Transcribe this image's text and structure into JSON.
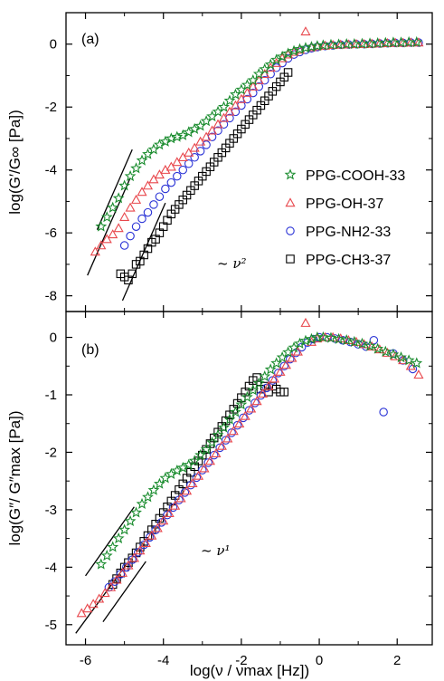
{
  "chart_data": [
    {
      "panel": "(a)",
      "type": "scatter",
      "ylabel": "log(G′/G∞ [Pa])",
      "xlim": [
        -6.5,
        2.9
      ],
      "ylim": [
        -8.5,
        1.0
      ],
      "yticks": [
        0,
        -2,
        -4,
        -6,
        -8
      ],
      "grid": false,
      "legend_position": "right-center",
      "annotations": [
        {
          "text": "~ ν²",
          "x": -4.05,
          "y": -6.8
        },
        {
          "slope_lines": [
            [
              -5.7,
              -5.9,
              -4.8,
              -3.35
            ],
            [
              -5.95,
              -7.35,
              -4.85,
              -4.25
            ],
            [
              -5.05,
              -8.15,
              -3.95,
              -5.05
            ]
          ]
        }
      ],
      "series": [
        {
          "name": "PPG-COOH-33",
          "color": "#1a8c2e",
          "marker": "star",
          "x": [
            -5.6,
            -5.45,
            -5.3,
            -5.15,
            -5.0,
            -4.85,
            -4.7,
            -4.55,
            -4.4,
            -4.25,
            -4.1,
            -3.95,
            -3.8,
            -3.65,
            -3.5,
            -3.35,
            -3.2,
            -3.05,
            -2.9,
            -2.75,
            -2.6,
            -2.45,
            -2.3,
            -2.15,
            -2.0,
            -1.85,
            -1.7,
            -1.55,
            -1.4,
            -1.25,
            -1.1,
            -0.95,
            -0.8,
            -0.65,
            -0.5,
            -0.35,
            -0.2,
            -0.05,
            0.1,
            0.3,
            0.5,
            0.7,
            0.9,
            1.1,
            1.3,
            1.5,
            1.7,
            1.9,
            2.1,
            2.3,
            2.5
          ],
          "y": [
            -5.8,
            -5.5,
            -5.2,
            -4.9,
            -4.5,
            -4.2,
            -3.95,
            -3.7,
            -3.5,
            -3.35,
            -3.2,
            -3.1,
            -3.0,
            -2.95,
            -2.9,
            -2.8,
            -2.7,
            -2.6,
            -2.45,
            -2.3,
            -2.15,
            -2.0,
            -1.8,
            -1.6,
            -1.45,
            -1.3,
            -1.15,
            -0.95,
            -0.8,
            -0.65,
            -0.5,
            -0.4,
            -0.3,
            -0.22,
            -0.16,
            -0.12,
            -0.09,
            -0.06,
            -0.04,
            -0.02,
            -0.01,
            0.0,
            0.0,
            0.01,
            0.02,
            0.03,
            0.04,
            0.05,
            0.05,
            0.06,
            0.06
          ]
        },
        {
          "name": "PPG-OH-37",
          "color": "#e8474c",
          "marker": "triangle",
          "x": [
            -5.75,
            -5.6,
            -5.45,
            -5.3,
            -5.15,
            -5.0,
            -4.85,
            -4.7,
            -4.55,
            -4.4,
            -4.25,
            -4.1,
            -3.95,
            -3.8,
            -3.65,
            -3.5,
            -3.35,
            -3.2,
            -3.05,
            -2.9,
            -2.75,
            -2.6,
            -2.45,
            -2.3,
            -2.15,
            -2.0,
            -1.85,
            -1.7,
            -1.55,
            -1.4,
            -1.25,
            -1.1,
            -0.95,
            -0.8,
            -0.65,
            -0.5,
            -0.35,
            -0.2,
            -0.05,
            0.15,
            0.35,
            0.55,
            0.75,
            0.95,
            1.15,
            1.35,
            1.55,
            1.75,
            1.95,
            2.15,
            2.35,
            2.55
          ],
          "y": [
            -6.6,
            -6.4,
            -6.2,
            -6.05,
            -5.85,
            -5.5,
            -5.2,
            -4.95,
            -4.7,
            -4.5,
            -4.3,
            -4.15,
            -4.0,
            -3.9,
            -3.75,
            -3.6,
            -3.45,
            -3.3,
            -3.1,
            -2.95,
            -2.75,
            -2.55,
            -2.35,
            -2.15,
            -1.95,
            -1.75,
            -1.55,
            -1.35,
            -1.15,
            -0.95,
            -0.75,
            -0.6,
            -0.45,
            -0.33,
            -0.25,
            -0.18,
            0.4,
            -0.1,
            -0.07,
            -0.05,
            -0.03,
            -0.02,
            -0.01,
            0.0,
            0.0,
            0.01,
            0.02,
            0.03,
            0.04,
            0.04,
            0.05,
            0.05
          ]
        },
        {
          "name": "PPG-NH2-33",
          "color": "#2a33d6",
          "marker": "circle",
          "x": [
            -5.0,
            -4.85,
            -4.7,
            -4.55,
            -4.4,
            -4.25,
            -4.1,
            -3.95,
            -3.8,
            -3.65,
            -3.5,
            -3.35,
            -3.2,
            -3.05,
            -2.9,
            -2.75,
            -2.6,
            -2.45,
            -2.3,
            -2.15,
            -2.0,
            -1.85,
            -1.7,
            -1.55,
            -1.4,
            -1.25,
            -1.1,
            -0.95,
            -0.8,
            -0.65,
            -0.5,
            -0.35,
            -0.2,
            -0.05,
            0.15,
            0.35,
            0.55,
            0.75,
            0.95,
            1.15,
            1.35,
            1.55,
            1.75,
            1.95,
            2.15,
            2.35,
            2.55
          ],
          "y": [
            -6.4,
            -6.1,
            -5.8,
            -5.55,
            -5.35,
            -5.1,
            -4.85,
            -4.6,
            -4.4,
            -4.2,
            -4.0,
            -3.8,
            -3.6,
            -3.4,
            -3.2,
            -2.95,
            -2.75,
            -2.55,
            -2.35,
            -2.15,
            -1.95,
            -1.75,
            -1.55,
            -1.35,
            -1.15,
            -0.95,
            -0.75,
            -0.6,
            -0.45,
            -0.33,
            -0.25,
            -0.18,
            -0.13,
            -0.09,
            -0.06,
            -0.04,
            -0.02,
            -0.01,
            0.0,
            0.0,
            0.01,
            0.02,
            0.03,
            0.04,
            0.04,
            0.05,
            0.05
          ]
        },
        {
          "name": "PPG-CH3-37",
          "color": "#000000",
          "marker": "square",
          "x": [
            -5.1,
            -5.0,
            -4.9,
            -4.8,
            -4.7,
            -4.6,
            -4.5,
            -4.4,
            -4.3,
            -4.2,
            -4.1,
            -4.0,
            -3.9,
            -3.8,
            -3.7,
            -3.6,
            -3.5,
            -3.4,
            -3.3,
            -3.2,
            -3.1,
            -3.0,
            -2.9,
            -2.8,
            -2.7,
            -2.6,
            -2.5,
            -2.4,
            -2.3,
            -2.2,
            -2.1,
            -2.0,
            -1.9,
            -1.8,
            -1.7,
            -1.6,
            -1.5,
            -1.4,
            -1.3,
            -1.2,
            -1.1,
            -1.0,
            -0.9,
            -0.8
          ],
          "y": [
            -7.3,
            -7.4,
            -7.5,
            -7.3,
            -7.0,
            -6.9,
            -6.7,
            -6.5,
            -6.3,
            -6.2,
            -6.0,
            -5.8,
            -5.6,
            -5.4,
            -5.25,
            -5.1,
            -4.95,
            -4.8,
            -4.65,
            -4.5,
            -4.35,
            -4.2,
            -4.05,
            -3.9,
            -3.75,
            -3.6,
            -3.45,
            -3.3,
            -3.15,
            -3.0,
            -2.85,
            -2.7,
            -2.55,
            -2.4,
            -2.25,
            -2.1,
            -1.95,
            -1.8,
            -1.65,
            -1.5,
            -1.35,
            -1.2,
            -1.05,
            -0.9
          ]
        }
      ]
    },
    {
      "panel": "(b)",
      "type": "scatter",
      "ylabel": "log(G″/ G″max [Pa])",
      "xlabel": "log(ν / νmax [Hz])",
      "xlim": [
        -6.5,
        2.9
      ],
      "ylim": [
        -5.35,
        0.45
      ],
      "xticks": [
        -6,
        -4,
        -2,
        0,
        2
      ],
      "yticks": [
        0,
        -1,
        -2,
        -3,
        -4,
        -5
      ],
      "grid": false,
      "annotations": [
        {
          "text": "~ ν¹",
          "x": -3.9,
          "y": -4.2
        },
        {
          "slope_lines": [
            [
              -6.0,
              -4.15,
              -4.75,
              -2.95
            ],
            [
              -6.25,
              -5.15,
              -4.95,
              -3.95
            ],
            [
              -5.55,
              -4.95,
              -4.45,
              -3.9
            ]
          ]
        }
      ],
      "series": [
        {
          "name": "PPG-COOH-33",
          "color": "#1a8c2e",
          "marker": "star",
          "x": [
            -5.6,
            -5.45,
            -5.3,
            -5.15,
            -5.0,
            -4.85,
            -4.7,
            -4.55,
            -4.4,
            -4.25,
            -4.1,
            -3.95,
            -3.8,
            -3.65,
            -3.5,
            -3.35,
            -3.2,
            -3.05,
            -2.9,
            -2.75,
            -2.6,
            -2.45,
            -2.3,
            -2.15,
            -2.0,
            -1.85,
            -1.7,
            -1.55,
            -1.4,
            -1.25,
            -1.1,
            -0.95,
            -0.8,
            -0.65,
            -0.5,
            -0.35,
            -0.2,
            -0.05,
            0.1,
            0.3,
            0.5,
            0.7,
            0.9,
            1.1,
            1.3,
            1.5,
            1.7,
            1.9,
            2.1,
            2.3,
            2.5
          ],
          "y": [
            -3.95,
            -3.8,
            -3.65,
            -3.5,
            -3.35,
            -3.2,
            -3.05,
            -2.9,
            -2.78,
            -2.66,
            -2.55,
            -2.45,
            -2.38,
            -2.32,
            -2.27,
            -2.22,
            -2.15,
            -2.05,
            -1.95,
            -1.83,
            -1.7,
            -1.57,
            -1.43,
            -1.3,
            -1.17,
            -1.04,
            -0.92,
            -0.8,
            -0.68,
            -0.56,
            -0.45,
            -0.35,
            -0.26,
            -0.18,
            -0.11,
            -0.06,
            -0.03,
            0.0,
            0.0,
            -0.01,
            -0.03,
            -0.05,
            -0.08,
            -0.11,
            -0.15,
            -0.2,
            -0.25,
            -0.3,
            -0.35,
            -0.4,
            -0.45
          ]
        },
        {
          "name": "PPG-OH-37",
          "color": "#e8474c",
          "marker": "triangle",
          "x": [
            -6.1,
            -5.95,
            -5.8,
            -5.65,
            -5.5,
            -5.35,
            -5.2,
            -5.05,
            -4.9,
            -4.75,
            -4.6,
            -4.45,
            -4.3,
            -4.15,
            -4.0,
            -3.85,
            -3.7,
            -3.55,
            -3.4,
            -3.25,
            -3.1,
            -2.95,
            -2.8,
            -2.65,
            -2.5,
            -2.35,
            -2.2,
            -2.05,
            -1.9,
            -1.75,
            -1.6,
            -1.45,
            -1.3,
            -1.15,
            -1.0,
            -0.85,
            -0.7,
            -0.55,
            -0.35,
            -0.2,
            -0.05,
            0.15,
            0.35,
            0.55,
            0.75,
            0.95,
            1.15,
            1.35,
            1.55,
            1.75,
            1.95,
            2.15,
            2.35,
            2.55
          ],
          "y": [
            -4.8,
            -4.72,
            -4.64,
            -4.55,
            -4.45,
            -4.35,
            -4.22,
            -4.1,
            -3.97,
            -3.84,
            -3.71,
            -3.58,
            -3.45,
            -3.32,
            -3.19,
            -3.06,
            -2.93,
            -2.8,
            -2.67,
            -2.54,
            -2.41,
            -2.28,
            -2.15,
            -2.02,
            -1.89,
            -1.76,
            -1.63,
            -1.5,
            -1.37,
            -1.24,
            -1.11,
            -0.98,
            -0.85,
            -0.72,
            -0.6,
            -0.48,
            -0.36,
            -0.25,
            0.25,
            -0.08,
            -0.02,
            0.0,
            0.0,
            -0.02,
            -0.05,
            -0.08,
            -0.12,
            -0.16,
            -0.21,
            -0.27,
            -0.33,
            -0.4,
            -0.5,
            -0.65
          ]
        },
        {
          "name": "PPG-NH2-33",
          "color": "#2a33d6",
          "marker": "circle",
          "x": [
            -5.4,
            -5.25,
            -5.1,
            -4.95,
            -4.8,
            -4.65,
            -4.5,
            -4.35,
            -4.2,
            -4.05,
            -3.9,
            -3.75,
            -3.6,
            -3.45,
            -3.3,
            -3.15,
            -3.0,
            -2.85,
            -2.7,
            -2.55,
            -2.4,
            -2.25,
            -2.1,
            -1.95,
            -1.8,
            -1.65,
            -1.5,
            -1.35,
            -1.2,
            -1.05,
            -0.9,
            -0.75,
            -0.6,
            -0.45,
            -0.3,
            -0.15,
            0.0,
            0.2,
            0.4,
            0.6,
            0.8,
            1.0,
            1.2,
            1.4,
            1.65,
            1.9,
            2.15,
            2.4
          ],
          "y": [
            -4.35,
            -4.25,
            -4.12,
            -4.0,
            -3.87,
            -3.74,
            -3.61,
            -3.48,
            -3.35,
            -3.22,
            -3.09,
            -2.96,
            -2.83,
            -2.7,
            -2.57,
            -2.44,
            -2.31,
            -2.18,
            -2.05,
            -1.92,
            -1.79,
            -1.66,
            -1.53,
            -1.4,
            -1.27,
            -1.14,
            -1.01,
            -0.88,
            -0.75,
            -0.62,
            -0.5,
            -0.38,
            -0.27,
            -0.17,
            -0.09,
            -0.03,
            0.0,
            0.0,
            -0.02,
            -0.05,
            -0.08,
            -0.12,
            -0.16,
            -0.05,
            -1.3,
            -0.28,
            -0.4,
            -0.55
          ]
        },
        {
          "name": "PPG-CH3-37",
          "color": "#000000",
          "marker": "square",
          "x": [
            -5.3,
            -5.2,
            -5.1,
            -5.0,
            -4.9,
            -4.8,
            -4.7,
            -4.6,
            -4.5,
            -4.4,
            -4.3,
            -4.2,
            -4.1,
            -4.0,
            -3.9,
            -3.8,
            -3.7,
            -3.6,
            -3.5,
            -3.4,
            -3.3,
            -3.2,
            -3.1,
            -3.0,
            -2.9,
            -2.8,
            -2.7,
            -2.6,
            -2.5,
            -2.4,
            -2.3,
            -2.2,
            -2.1,
            -2.0,
            -1.9,
            -1.8,
            -1.7,
            -1.6,
            -1.5,
            -1.4,
            -1.3,
            -1.2,
            -1.1,
            -1.0,
            -0.9
          ],
          "y": [
            -4.3,
            -4.2,
            -4.1,
            -4.0,
            -3.92,
            -3.84,
            -3.75,
            -3.65,
            -3.55,
            -3.45,
            -3.35,
            -3.25,
            -3.15,
            -3.05,
            -2.95,
            -2.85,
            -2.75,
            -2.65,
            -2.55,
            -2.45,
            -2.35,
            -2.25,
            -2.15,
            -2.05,
            -1.95,
            -1.85,
            -1.75,
            -1.65,
            -1.55,
            -1.45,
            -1.35,
            -1.25,
            -1.15,
            -1.05,
            -0.95,
            -0.85,
            -0.75,
            -0.7,
            -0.9,
            -0.85,
            -0.95,
            -0.85,
            -0.9,
            -0.95,
            -0.95
          ]
        }
      ]
    }
  ]
}
